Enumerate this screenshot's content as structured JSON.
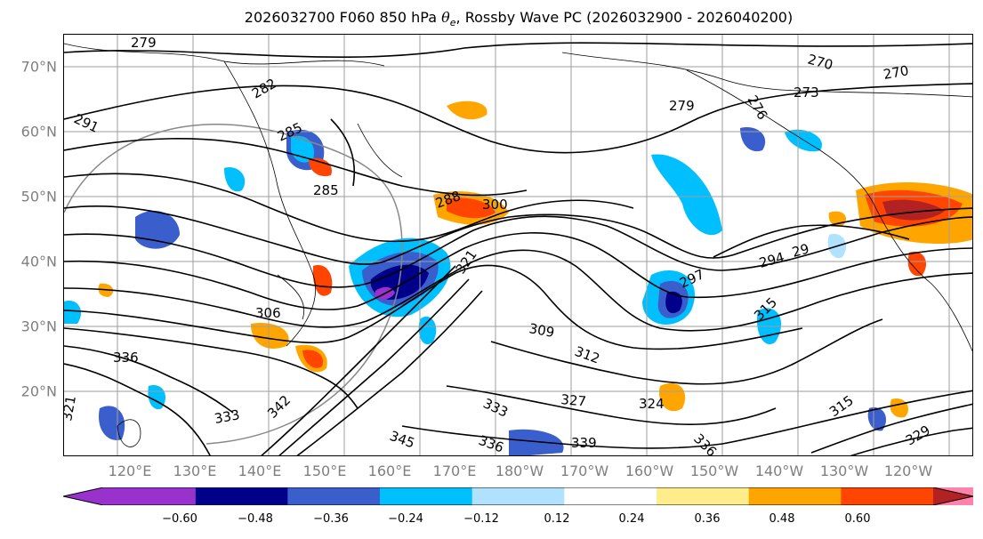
{
  "title": {
    "prefix": "2026032700 F060 850 hPa ",
    "theta": "θ",
    "theta_sub": "e",
    "suffix": ", Rossby Wave PC (2026032900 - 2026040200)"
  },
  "lat_labels": [
    "70°N",
    "60°N",
    "50°N",
    "40°N",
    "30°N",
    "20°N"
  ],
  "lon_labels": [
    "120°E",
    "130°E",
    "140°E",
    "150°E",
    "160°E",
    "170°E",
    "180°W",
    "170°W",
    "160°W",
    "150°W",
    "140°W",
    "130°W",
    "120°W"
  ],
  "contour_labels": [
    "279",
    "282",
    "291",
    "285",
    "285",
    "288",
    "300",
    "321",
    "270",
    "270",
    "273",
    "279",
    "276",
    "294",
    "29",
    "297",
    "309",
    "312",
    "306",
    "336",
    "327",
    "324",
    "333",
    "333",
    "342",
    "345",
    "336",
    "339",
    "336",
    "315",
    "315",
    "329",
    "321"
  ],
  "colorbar": {
    "colors": [
      "#9932cc",
      "#00008b",
      "#3a5fcd",
      "#00bfff",
      "#b0e2ff",
      "#ffffff",
      "#ffec8b",
      "#ffa500",
      "#ff4500",
      "#b22222",
      "#ff82ab"
    ],
    "ticks": [
      "−0.60",
      "−0.48",
      "−0.36",
      "−0.24",
      "−0.12",
      "0.12",
      "0.24",
      "0.36",
      "0.48",
      "0.60"
    ]
  },
  "colors": {
    "land_outline": "#000000",
    "gridline": "#9e9e9e",
    "contour": "#000000",
    "axis_label": "#7f7f7f"
  }
}
